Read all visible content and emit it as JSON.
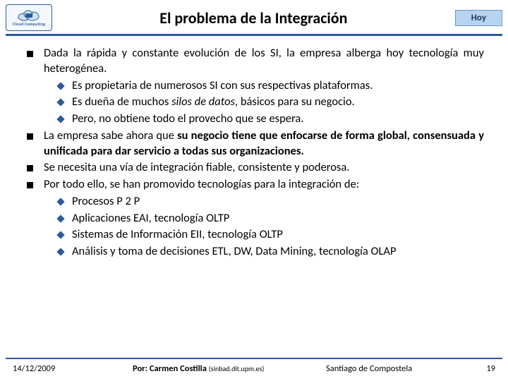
{
  "header": {
    "logo_text": "Cloud Computing",
    "title": "El problema de la Integración",
    "badge": "Hoy"
  },
  "colors": {
    "accent": "#2a5b9c",
    "badge_bg": "#b7d3ef",
    "badge_border": "#6a97c8",
    "text": "#000000",
    "background": "#ffffff"
  },
  "bullets": [
    {
      "html": "Dada la rápida y constante evolución de los SI, la empresa alberga hoy tecnología muy heterogénea.",
      "sub": [
        "Es propietaria de numerosos SI con sus respectivas plataformas.",
        "Es dueña de muchos <i>silos de datos</i>, básicos para su negocio.",
        "Pero, no obtiene todo el provecho que se espera."
      ]
    },
    {
      "html": "La empresa sabe ahora que <b>su negocio tiene que enfocarse de forma global, consensuada y unificada para dar servicio a todas sus organizaciones.</b>",
      "sub": []
    },
    {
      "html": "Se necesita una vía de integración fiable, consistente y poderosa.",
      "sub": []
    },
    {
      "html": "Por todo ello, se han promovido tecnologías para la integración de:",
      "sub": [
        "Procesos P 2 P",
        "Aplicaciones EAI, tecnología OLTP",
        "Sistemas de Información EII, tecnología OLTP",
        "Análisis y toma de decisiones ETL, DW, Data Mining, tecnología OLAP"
      ]
    }
  ],
  "footer": {
    "date": "14/12/2009",
    "author_prefix": "Por: Carmen Costilla",
    "author_small": "(sinbad.dit.upm.es)",
    "place": "Santiago de Compostela",
    "page": "19"
  }
}
